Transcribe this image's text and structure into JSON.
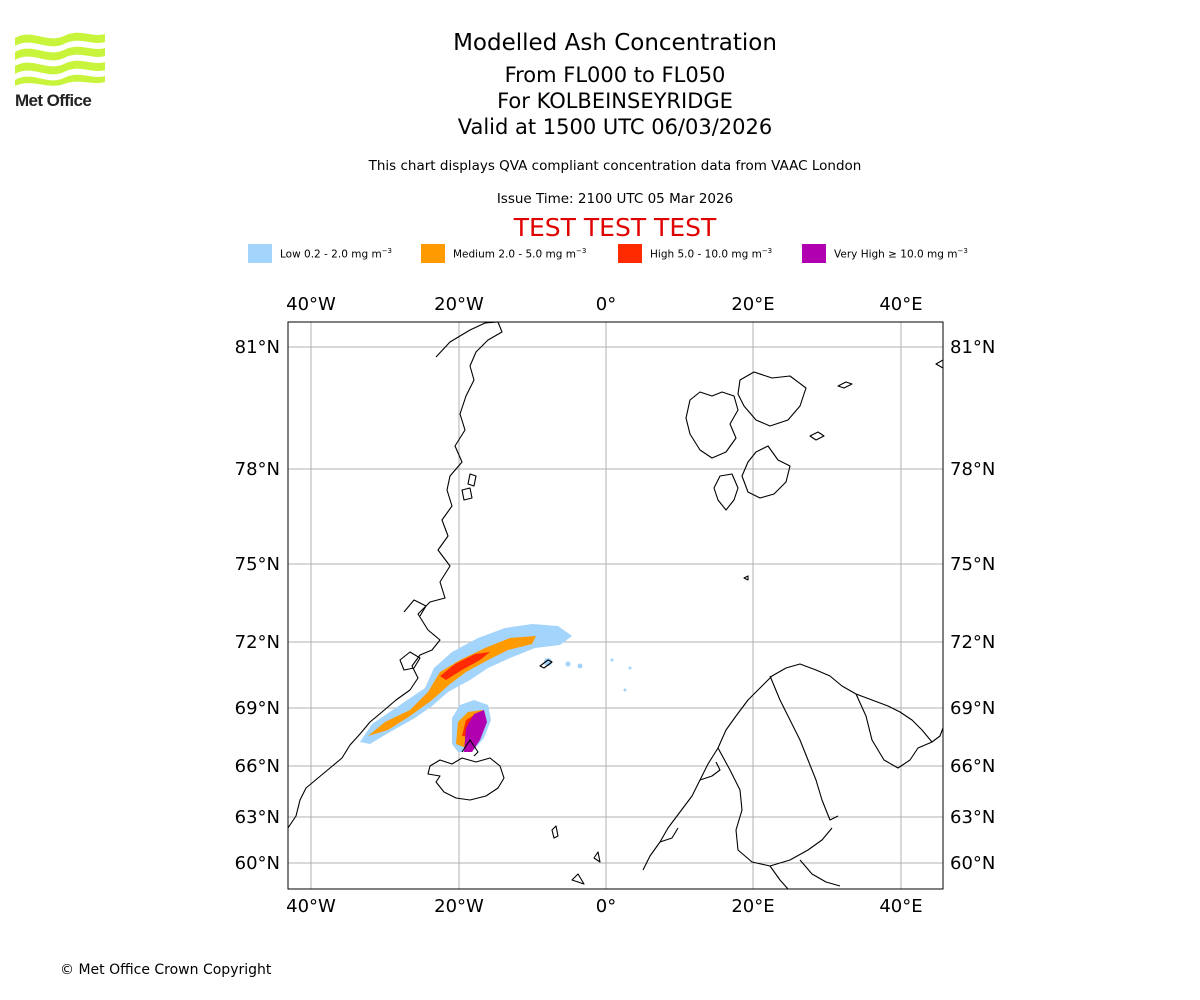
{
  "branding": {
    "logo_text": "Met Office",
    "logo_color": "#c8f53c",
    "copyright": "© Met Office Crown Copyright"
  },
  "titles": {
    "main": "Modelled Ash Concentration",
    "levels": "From FL000 to FL050",
    "location": "For KOLBEINSEYRIDGE",
    "valid": "Valid at 1500 UTC 06/03/2026",
    "description": "This chart displays QVA compliant concentration data from VAAC London",
    "issue_time": "Issue Time: 2100 UTC 05 Mar 2026",
    "test_banner": "TEST TEST TEST"
  },
  "legend": [
    {
      "label": "Low 0.2 - 2.0 mg m",
      "exp": "−3",
      "color": "#a3d4fb"
    },
    {
      "label": "Medium 2.0 - 5.0 mg m",
      "exp": "−3",
      "color": "#ff9a00"
    },
    {
      "label": "High 5.0 - 10.0 mg m",
      "exp": "−3",
      "color": "#ff2a00"
    },
    {
      "label": "Very High  ≥  10.0 mg m",
      "exp": "−3",
      "color": "#b000b0"
    }
  ],
  "map": {
    "lon_ticks": [
      "40°W",
      "20°W",
      "0°",
      "20°E",
      "40°E"
    ],
    "lat_ticks": [
      "81°N",
      "78°N",
      "75°N",
      "72°N",
      "69°N",
      "66°N",
      "63°N",
      "60°N"
    ],
    "gridline_color": "#b0b0b0",
    "coast_color": "#000000"
  }
}
